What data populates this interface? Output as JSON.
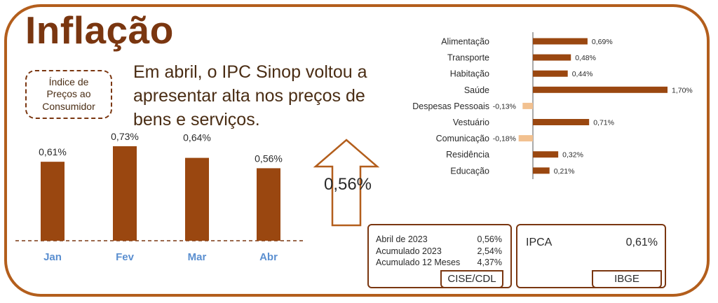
{
  "title": "Inflação",
  "ipc_box_text": "Índice de\nPreços ao\nConsumidor",
  "headline": "Em abril, o IPC Sinop voltou a apresentar alta nos preços de bens e serviços.",
  "big_value": "0,56%",
  "colors": {
    "frame": "#b35e1c",
    "bar": "#9a4710",
    "negative_bar": "#f2c190",
    "month_label": "#5b8fd0"
  },
  "chart_data": [
    {
      "type": "bar",
      "categories": [
        "Jan",
        "Fev",
        "Mar",
        "Abr"
      ],
      "values": [
        0.61,
        0.73,
        0.64,
        0.56
      ],
      "labels": [
        "0,61%",
        "0,73%",
        "0,64%",
        "0,56%"
      ],
      "ylim": [
        0,
        0.8
      ],
      "grid": false
    },
    {
      "type": "bar",
      "orientation": "horizontal",
      "categories": [
        "Alimentação",
        "Transporte",
        "Habitação",
        "Saúde",
        "Despesas Pessoais",
        "Vestuário",
        "Comunicação",
        "Residência",
        "Educação"
      ],
      "values": [
        0.69,
        0.48,
        0.44,
        1.7,
        -0.13,
        0.71,
        -0.18,
        0.32,
        0.21
      ],
      "labels": [
        "0,69%",
        "0,48%",
        "0,44%",
        "1,70%",
        "-0,13%",
        "0,71%",
        "-0,18%",
        "0,32%",
        "0,21%"
      ],
      "xlim": [
        -0.18,
        1.7
      ],
      "grid": false
    }
  ],
  "cise": {
    "rows": [
      {
        "label": "Abril de 2023",
        "value": "0,56%"
      },
      {
        "label": "Acumulado 2023",
        "value": "2,54%"
      },
      {
        "label": "Acumulado 12 Meses",
        "value": "4,37%"
      }
    ],
    "source": "CISE/CDL"
  },
  "ipca": {
    "name": "IPCA",
    "value": "0,61%",
    "source": "IBGE"
  }
}
